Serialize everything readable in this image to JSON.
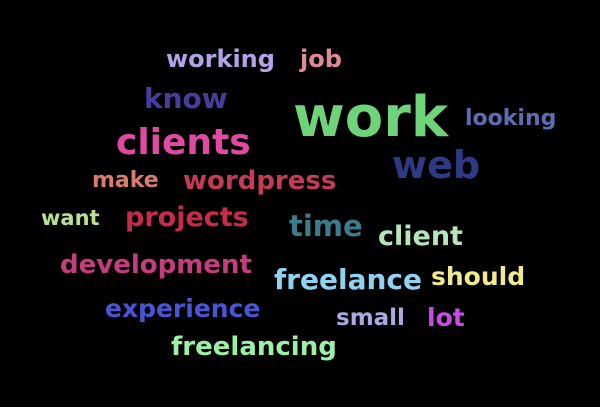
{
  "words": [
    {
      "id": "work",
      "text": "work",
      "color": "#6fd37a"
    },
    {
      "id": "clients",
      "text": "clients",
      "color": "#e04aa2"
    },
    {
      "id": "web",
      "text": "web",
      "color": "#2f3a86"
    },
    {
      "id": "know",
      "text": "know",
      "color": "#4a3c9d"
    },
    {
      "id": "working",
      "text": "working",
      "color": "#b3a3e6"
    },
    {
      "id": "job",
      "text": "job",
      "color": "#e08a95"
    },
    {
      "id": "looking",
      "text": "looking",
      "color": "#5a6fb3"
    },
    {
      "id": "make",
      "text": "make",
      "color": "#d97b6d"
    },
    {
      "id": "wordpress",
      "text": "wordpress",
      "color": "#c63a55"
    },
    {
      "id": "want",
      "text": "want",
      "color": "#b7e38f"
    },
    {
      "id": "projects",
      "text": "projects",
      "color": "#c82a4a"
    },
    {
      "id": "time",
      "text": "time",
      "color": "#3a7c8a"
    },
    {
      "id": "client",
      "text": "client",
      "color": "#b6e6b8"
    },
    {
      "id": "development",
      "text": "development",
      "color": "#c53c7f"
    },
    {
      "id": "freelance",
      "text": "freelance",
      "color": "#8fd3f2"
    },
    {
      "id": "should",
      "text": "should",
      "color": "#f1e98a"
    },
    {
      "id": "experience",
      "text": "experience",
      "color": "#4a55d6"
    },
    {
      "id": "small",
      "text": "small",
      "color": "#a9a9e6"
    },
    {
      "id": "lot",
      "text": "lot",
      "color": "#c94be6"
    },
    {
      "id": "freelancing",
      "text": "freelancing",
      "color": "#9cf0a3"
    }
  ]
}
